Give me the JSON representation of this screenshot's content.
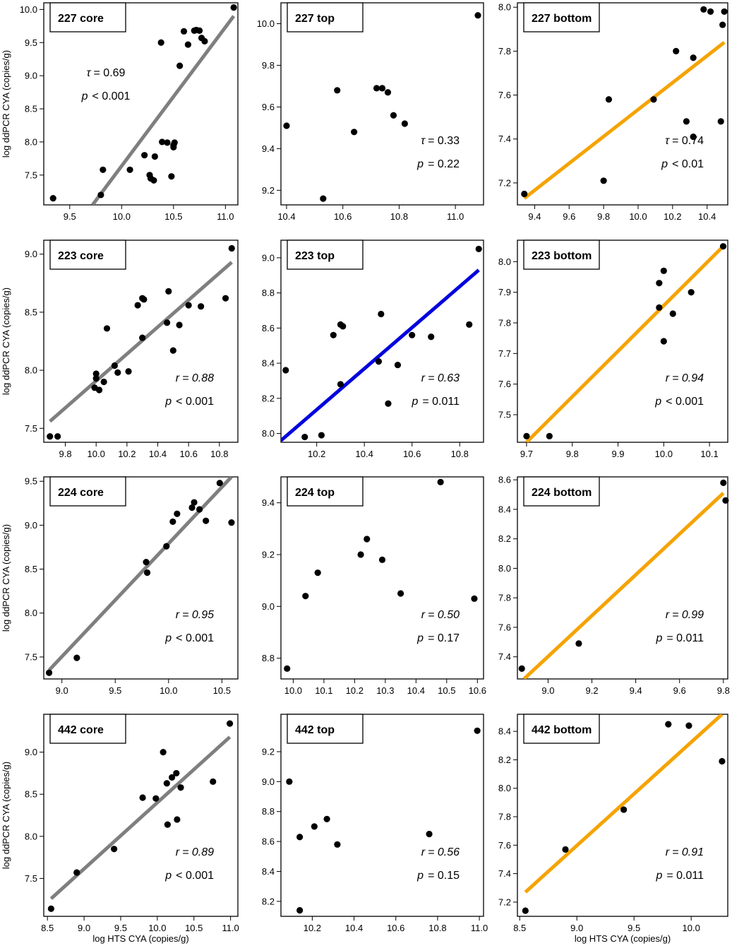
{
  "figure": {
    "ylabel": "log ddPCR CYA (copies/g)",
    "xlabel": "log HTS CYA (copies/g)"
  },
  "colors": {
    "gray": "#7f7f7f",
    "blue": "#0000dd",
    "orange": "#f5a300",
    "point": "#000000"
  },
  "chart_data": [
    {
      "type": "scatter",
      "title": "227 core",
      "xlim": [
        9.25,
        11.12
      ],
      "ylim": [
        7.05,
        10.1
      ],
      "xticks": [
        "9.5",
        "10.0",
        "10.5",
        "11.0"
      ],
      "yticks": [
        "7.5",
        "8.0",
        "8.5",
        "9.0",
        "9.5",
        "10.0"
      ],
      "x": [
        9.34,
        9.8,
        9.82,
        10.08,
        10.22,
        10.27,
        10.28,
        10.31,
        10.32,
        10.38,
        10.39,
        10.44,
        10.48,
        10.5,
        10.5,
        10.51,
        10.56,
        10.6,
        10.64,
        10.7,
        10.72,
        10.75,
        10.77,
        10.8,
        11.08
      ],
      "y": [
        7.15,
        7.2,
        7.58,
        7.58,
        7.8,
        7.5,
        7.45,
        7.42,
        7.78,
        9.5,
        8.0,
        7.99,
        7.48,
        7.92,
        7.95,
        7.99,
        9.15,
        9.67,
        9.47,
        9.68,
        9.69,
        9.68,
        9.57,
        9.52,
        10.03
      ],
      "fit": {
        "x": [
          9.72,
          11.08
        ],
        "y": [
          7.05,
          9.9
        ],
        "color": "gray"
      },
      "stat": {
        "label": "τ",
        "value": "= 0.69",
        "p": "< 0.001",
        "position": "upper-left"
      }
    },
    {
      "type": "scatter",
      "title": "227 top",
      "xlim": [
        10.38,
        11.1
      ],
      "ylim": [
        9.13,
        10.1
      ],
      "xticks": [
        "10.4",
        "10.6",
        "10.8",
        "11.0"
      ],
      "yticks": [
        "9.2",
        "9.4",
        "9.6",
        "9.8",
        "10.0"
      ],
      "x": [
        10.4,
        10.53,
        10.58,
        10.64,
        10.72,
        10.74,
        10.76,
        10.78,
        10.82,
        11.08
      ],
      "y": [
        9.51,
        9.16,
        9.68,
        9.48,
        9.69,
        9.69,
        9.67,
        9.56,
        9.52,
        10.04
      ],
      "stat": {
        "label": "τ",
        "value": "= 0.33",
        "p": "= 0.22",
        "position": "lower-right"
      }
    },
    {
      "type": "scatter",
      "title": "227 bottom",
      "xlim": [
        9.3,
        10.52
      ],
      "ylim": [
        7.1,
        8.02
      ],
      "xticks": [
        "9.4",
        "9.6",
        "9.8",
        "10.0",
        "10.2",
        "10.4"
      ],
      "yticks": [
        "7.2",
        "7.4",
        "7.6",
        "7.8",
        "8.0"
      ],
      "x": [
        9.34,
        9.8,
        9.83,
        10.09,
        10.22,
        10.28,
        10.32,
        10.32,
        10.38,
        10.42,
        10.48,
        10.49,
        10.5
      ],
      "y": [
        7.15,
        7.21,
        7.58,
        7.58,
        7.8,
        7.48,
        7.41,
        7.77,
        7.99,
        7.98,
        7.48,
        7.92,
        7.98
      ],
      "fit": {
        "x": [
          9.34,
          10.5
        ],
        "y": [
          7.13,
          7.84
        ],
        "color": "orange"
      },
      "stat": {
        "label": "τ",
        "value": "= 0.74",
        "p": "< 0.01",
        "position": "lower-right"
      }
    },
    {
      "type": "scatter",
      "title": "223 core",
      "xlim": [
        9.66,
        10.92
      ],
      "ylim": [
        7.38,
        9.12
      ],
      "xticks": [
        "9.8",
        "10.0",
        "10.2",
        "10.4",
        "10.6",
        "10.8"
      ],
      "yticks": [
        "7.5",
        "8.0",
        "8.5",
        "9.0"
      ],
      "x": [
        9.7,
        9.75,
        9.99,
        10.0,
        10.0,
        10.02,
        10.05,
        10.07,
        10.12,
        10.14,
        10.21,
        10.27,
        10.3,
        10.31,
        10.3,
        10.47,
        10.46,
        10.5,
        10.54,
        10.6,
        10.68,
        10.84,
        10.88
      ],
      "y": [
        7.43,
        7.43,
        7.85,
        7.93,
        7.97,
        7.83,
        7.9,
        8.36,
        8.04,
        7.98,
        7.99,
        8.56,
        8.62,
        8.61,
        8.28,
        8.68,
        8.41,
        8.17,
        8.39,
        8.56,
        8.55,
        8.62,
        9.05
      ],
      "fit": {
        "x": [
          9.7,
          10.88
        ],
        "y": [
          7.56,
          8.93
        ],
        "color": "gray"
      },
      "stat": {
        "label": "r",
        "value": "= 0.88",
        "p": "< 0.001",
        "position": "lower-right"
      }
    },
    {
      "type": "scatter",
      "title": "223 top",
      "xlim": [
        10.05,
        10.9
      ],
      "ylim": [
        7.95,
        9.1
      ],
      "xticks": [
        "10.2",
        "10.4",
        "10.6",
        "10.8"
      ],
      "yticks": [
        "8.0",
        "8.2",
        "8.4",
        "8.6",
        "8.8",
        "9.0"
      ],
      "x": [
        10.07,
        10.15,
        10.22,
        10.27,
        10.3,
        10.3,
        10.31,
        10.46,
        10.47,
        10.5,
        10.54,
        10.6,
        10.68,
        10.84,
        10.88
      ],
      "y": [
        8.36,
        7.98,
        7.99,
        8.56,
        8.62,
        8.28,
        8.61,
        8.41,
        8.68,
        8.17,
        8.39,
        8.56,
        8.55,
        8.62,
        9.05
      ],
      "fit": {
        "x": [
          10.05,
          10.88
        ],
        "y": [
          7.96,
          8.93
        ],
        "color": "blue"
      },
      "stat": {
        "label": "r",
        "value": "= 0.63",
        "p": "= 0.011",
        "position": "lower-right"
      }
    },
    {
      "type": "scatter",
      "title": "223 bottom",
      "xlim": [
        9.68,
        10.14
      ],
      "ylim": [
        7.41,
        8.07
      ],
      "xticks": [
        "9.7",
        "9.8",
        "9.9",
        "10.0",
        "10.1"
      ],
      "yticks": [
        "7.5",
        "7.6",
        "7.7",
        "7.8",
        "7.9",
        "8.0"
      ],
      "x": [
        9.7,
        9.75,
        9.99,
        9.99,
        10.0,
        10.0,
        10.02,
        10.06,
        10.13
      ],
      "y": [
        7.43,
        7.43,
        7.85,
        7.93,
        7.97,
        7.74,
        7.83,
        7.9,
        8.05
      ],
      "fit": {
        "x": [
          9.7,
          10.13
        ],
        "y": [
          7.41,
          8.05
        ],
        "color": "orange"
      },
      "stat": {
        "label": "r",
        "value": "= 0.94",
        "p": "< 0.001",
        "position": "lower-right"
      }
    },
    {
      "type": "scatter",
      "title": "224 core",
      "xlim": [
        8.83,
        10.65
      ],
      "ylim": [
        7.25,
        9.55
      ],
      "xticks": [
        "9.0",
        "9.5",
        "10.0",
        "10.5"
      ],
      "yticks": [
        "7.5",
        "8.0",
        "8.5",
        "9.0",
        "9.5"
      ],
      "x": [
        8.88,
        9.14,
        9.79,
        9.8,
        9.98,
        10.04,
        10.08,
        10.22,
        10.24,
        10.29,
        10.35,
        10.48,
        10.59
      ],
      "y": [
        7.32,
        7.49,
        8.58,
        8.46,
        8.76,
        9.04,
        9.13,
        9.2,
        9.26,
        9.18,
        9.05,
        9.48,
        9.03
      ],
      "fit": {
        "x": [
          8.88,
          10.59
        ],
        "y": [
          7.35,
          9.55
        ],
        "color": "gray"
      },
      "stat": {
        "label": "r",
        "value": "= 0.95",
        "p": "< 0.001",
        "position": "lower-right"
      }
    },
    {
      "type": "scatter",
      "title": "224 top",
      "xlim": [
        9.96,
        10.62
      ],
      "ylim": [
        8.72,
        9.5
      ],
      "xticks": [
        "10.0",
        "10.1",
        "10.2",
        "10.3",
        "10.4",
        "10.5",
        "10.6"
      ],
      "yticks": [
        "8.8",
        "9.0",
        "9.2",
        "9.4"
      ],
      "x": [
        9.98,
        10.04,
        10.08,
        10.22,
        10.24,
        10.29,
        10.35,
        10.48,
        10.59
      ],
      "y": [
        8.76,
        9.04,
        9.13,
        9.2,
        9.26,
        9.18,
        9.05,
        9.48,
        9.03
      ],
      "stat": {
        "label": "r",
        "value": "= 0.50",
        "p": "= 0.17",
        "position": "lower-right"
      }
    },
    {
      "type": "scatter",
      "title": "224 bottom",
      "xlim": [
        8.86,
        9.82
      ],
      "ylim": [
        7.25,
        8.62
      ],
      "xticks": [
        "9.0",
        "9.2",
        "9.4",
        "9.6",
        "9.8"
      ],
      "yticks": [
        "7.4",
        "7.6",
        "7.8",
        "8.0",
        "8.2",
        "8.4",
        "8.6"
      ],
      "x": [
        8.88,
        9.14,
        9.8,
        9.81
      ],
      "y": [
        7.32,
        7.49,
        8.58,
        8.46
      ],
      "fit": {
        "x": [
          8.89,
          9.8
        ],
        "y": [
          7.25,
          8.51
        ],
        "color": "orange"
      },
      "stat": {
        "label": "r",
        "value": "= 0.99",
        "p": "= 0.011",
        "position": "lower-right"
      }
    },
    {
      "type": "scatter",
      "title": "442 core",
      "xlim": [
        8.45,
        11.1
      ],
      "ylim": [
        7.05,
        9.45
      ],
      "xticks": [
        "8.5",
        "9.0",
        "9.5",
        "10.0",
        "10.5",
        "11.0"
      ],
      "yticks": [
        "7.5",
        "8.0",
        "8.5",
        "9.0"
      ],
      "x": [
        8.55,
        8.9,
        9.41,
        9.8,
        9.98,
        10.08,
        10.13,
        10.14,
        10.2,
        10.26,
        10.27,
        10.32,
        10.76,
        10.99
      ],
      "y": [
        7.14,
        7.57,
        7.85,
        8.46,
        8.45,
        9.0,
        8.63,
        8.14,
        8.7,
        8.75,
        8.2,
        8.58,
        8.65,
        9.34
      ],
      "fit": {
        "x": [
          8.55,
          10.99
        ],
        "y": [
          7.26,
          9.18
        ],
        "color": "gray"
      },
      "stat": {
        "label": "r",
        "value": "= 0.89",
        "p": "< 0.001",
        "position": "lower-right"
      }
    },
    {
      "type": "scatter",
      "title": "442 top",
      "xlim": [
        10.05,
        11.02
      ],
      "ylim": [
        8.1,
        9.45
      ],
      "xticks": [
        "10.2",
        "10.4",
        "10.6",
        "10.8",
        "11.0"
      ],
      "yticks": [
        "8.2",
        "8.4",
        "8.6",
        "8.8",
        "9.0",
        "9.2"
      ],
      "x": [
        10.09,
        10.14,
        10.14,
        10.21,
        10.27,
        10.32,
        10.76,
        10.99
      ],
      "y": [
        9.0,
        8.63,
        8.14,
        8.7,
        8.75,
        8.58,
        8.65,
        9.34
      ],
      "stat": {
        "label": "r",
        "value": "= 0.56",
        "p": "= 0.15",
        "position": "lower-right"
      }
    },
    {
      "type": "scatter",
      "title": "442 bottom",
      "xlim": [
        8.48,
        10.32
      ],
      "ylim": [
        7.1,
        8.52
      ],
      "xticks": [
        "8.5",
        "9.0",
        "9.5",
        "10.0"
      ],
      "yticks": [
        "7.2",
        "7.4",
        "7.6",
        "7.8",
        "8.0",
        "8.2",
        "8.4"
      ],
      "x": [
        8.55,
        8.9,
        9.41,
        9.8,
        9.98,
        10.27
      ],
      "y": [
        7.14,
        7.57,
        7.85,
        8.45,
        8.44,
        8.19
      ],
      "fit": {
        "x": [
          8.55,
          10.27
        ],
        "y": [
          7.27,
          8.52
        ],
        "color": "orange"
      },
      "stat": {
        "label": "r",
        "value": "= 0.91",
        "p": "= 0.011",
        "position": "lower-right"
      }
    }
  ]
}
